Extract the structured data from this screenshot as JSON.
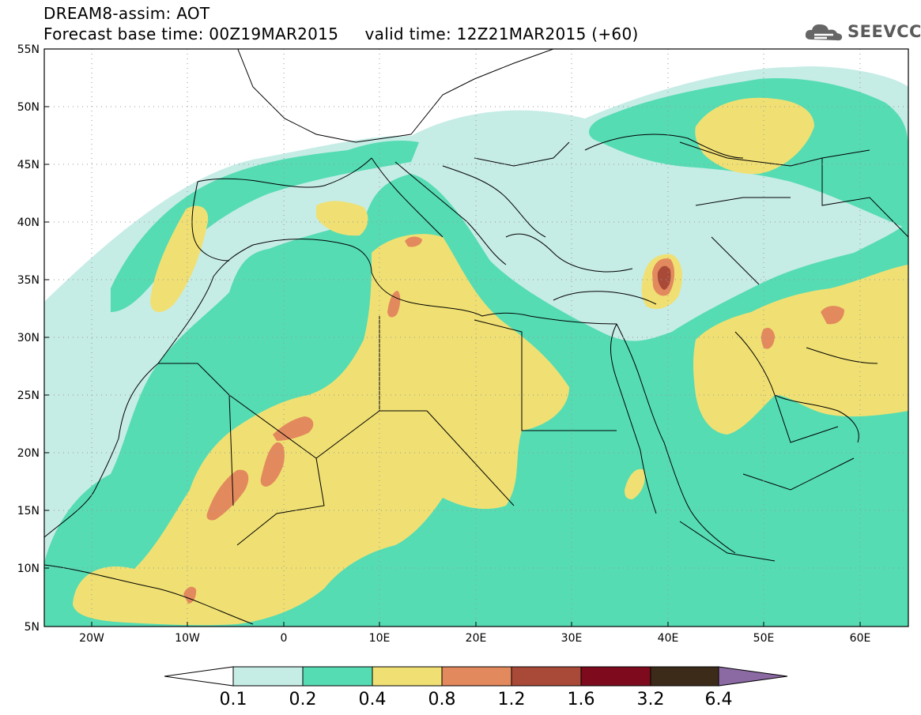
{
  "header": {
    "model_title": "DREAM8-assim: AOT",
    "base_time_label": "Forecast base time: 00Z19MAR2015",
    "valid_time_label": "valid time: 12Z21MAR2015 (+60)",
    "logo_text": "SEEVCCC",
    "logo_icon": "cloud-icon"
  },
  "map": {
    "field": "AOT",
    "lon_range": [
      -25,
      65
    ],
    "lat_range": [
      5,
      55
    ],
    "lat_ticks": [
      "55N",
      "50N",
      "45N",
      "40N",
      "35N",
      "30N",
      "25N",
      "20N",
      "15N",
      "10N",
      "5N"
    ],
    "lon_ticks": [
      "20W",
      "10W",
      "0",
      "10E",
      "20E",
      "30E",
      "40E",
      "50E",
      "60E"
    ],
    "grid": "dotted"
  },
  "colorbar": {
    "labels": [
      "0.1",
      "0.2",
      "0.4",
      "0.8",
      "1.2",
      "1.6",
      "3.2",
      "6.4"
    ],
    "colors": [
      "#ffffff",
      "#c6ece6",
      "#55dcb3",
      "#f0e073",
      "#e3895e",
      "#a94a38",
      "#7d0a1d",
      "#3d2b1a",
      "#8b69a3"
    ]
  }
}
